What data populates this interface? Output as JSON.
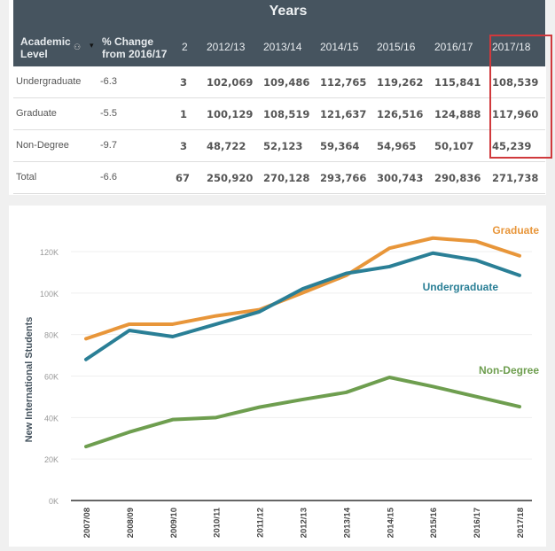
{
  "table": {
    "title": "Years",
    "headers": {
      "level": "Academic Level",
      "level_line1": "Academic",
      "level_line2": "Level",
      "change_line1": "% Change",
      "change_line2": "from 2016/17",
      "count": "2",
      "years": [
        "2012/13",
        "2013/14",
        "2014/15",
        "2015/16",
        "2016/17",
        "2017/18"
      ]
    },
    "rows": [
      {
        "level": "Undergraduate",
        "change": "-6.3",
        "count": "3",
        "values": [
          "102,069",
          "109,486",
          "112,765",
          "119,262",
          "115,841",
          "108,539"
        ]
      },
      {
        "level": "Graduate",
        "change": "-5.5",
        "count": "1",
        "values": [
          "100,129",
          "108,519",
          "121,637",
          "126,516",
          "124,888",
          "117,960"
        ]
      },
      {
        "level": "Non-Degree",
        "change": "-9.7",
        "count": "3",
        "values": [
          "48,722",
          "52,123",
          "59,364",
          "54,965",
          "50,107",
          "45,239"
        ]
      },
      {
        "level": "Total",
        "change": "-6.6",
        "count": "67",
        "values": [
          "250,920",
          "270,128",
          "293,766",
          "300,743",
          "290,836",
          "271,738"
        ]
      }
    ],
    "highlight_color": "#d0393c",
    "header_bg": "#46545f"
  },
  "chart_data": {
    "type": "line",
    "title": "",
    "xlabel": "",
    "ylabel": "New International Students",
    "x": [
      "2007/08",
      "2008/09",
      "2009/10",
      "2010/11",
      "2011/12",
      "2012/13",
      "2013/14",
      "2014/15",
      "2015/16",
      "2016/17",
      "2017/18"
    ],
    "ylim": [
      0,
      120000
    ],
    "yticks": [
      0,
      20000,
      40000,
      60000,
      80000,
      100000,
      120000
    ],
    "ytick_labels": [
      "0K",
      "20K",
      "40K",
      "60K",
      "80K",
      "100K",
      "120K"
    ],
    "grid": true,
    "legend": "inline-right",
    "series": [
      {
        "name": "Graduate",
        "color": "#e8963a",
        "values": [
          78000,
          85000,
          85000,
          89000,
          92000,
          100129,
          108519,
          121637,
          126516,
          124888,
          117960
        ]
      },
      {
        "name": "Undergraduate",
        "color": "#2a7f96",
        "values": [
          68000,
          82000,
          79000,
          85000,
          91000,
          102069,
          109486,
          112765,
          119262,
          115841,
          108539
        ]
      },
      {
        "name": "Non-Degree",
        "color": "#6e9e4f",
        "values": [
          26000,
          33000,
          39000,
          40000,
          45000,
          48722,
          52123,
          59364,
          54965,
          50107,
          45239
        ]
      }
    ]
  }
}
